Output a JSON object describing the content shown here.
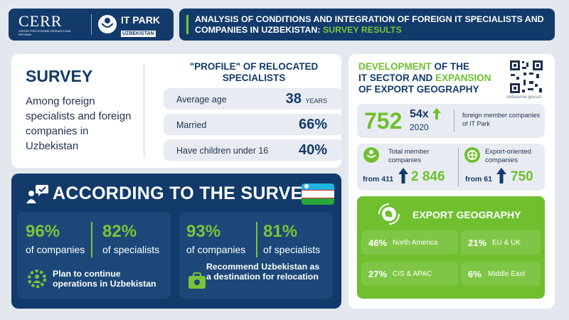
{
  "header": {
    "cerr_logo": "CERR",
    "cerr_sub": "CENTER FOR ECONOMIC RESEARCH AND REFORMS",
    "itpark_logo": "IT PARK",
    "itpark_sub": "UZBEKISTAN",
    "title_part1": "ANALYSIS OF CONDITIONS AND INTEGRATION OF FOREIGN IT SPECIALISTS AND COMPANIES IN UZBEKISTAN:",
    "title_highlight": "SURVEY RESULTS"
  },
  "survey": {
    "heading": "SURVEY",
    "description": "Among foreign specialists and foreign companies in Uzbekistan",
    "profile_title": "\"PROFILE\" OF RELOCATED SPECIALISTS",
    "rows": [
      {
        "label": "Average age",
        "value": "38",
        "unit": "YEARS"
      },
      {
        "label": "Married",
        "value": "66%",
        "unit": ""
      },
      {
        "label": "Have children under 16",
        "value": "40%",
        "unit": ""
      }
    ]
  },
  "according": {
    "heading": "ACCORDING TO THE SURVEY",
    "cards": [
      {
        "pct1": "96%",
        "label1": "of companies",
        "pct2": "82%",
        "label2": "of specialists",
        "desc": "Plan to continue operations in Uzbekistan"
      },
      {
        "pct1": "93%",
        "label1": "of companies",
        "pct2": "81%",
        "label2": "of specialists",
        "desc": "Recommend Uzbekistan as a destination for relocation"
      }
    ]
  },
  "development": {
    "title_a": "DEVELOPMENT",
    "title_b": " OF THE",
    "title_c": "IT SECTOR AND ",
    "title_d": "EXPANSION",
    "title_e": "OF EXPORT GEOGRAPHY",
    "qr_url": "outsource.gov.uz",
    "members_value": "752",
    "growth_value": "54x",
    "growth_year": "2020",
    "members_label": "foreign member companies of IT Park",
    "total": {
      "label": "Total member companies",
      "from": "from 411",
      "to": "2 846"
    },
    "export": {
      "label": "Export-oriented companies",
      "from": "from 61",
      "to": "750"
    }
  },
  "export_geo": {
    "heading": "EXPORT GEOGRAPHY",
    "regions": [
      {
        "pct": "46%",
        "region": "North America"
      },
      {
        "pct": "21%",
        "region": "EU & UK"
      },
      {
        "pct": "27%",
        "region": "CIS & APAC"
      },
      {
        "pct": "6%",
        "region": "Middle East"
      }
    ]
  },
  "colors": {
    "navy": "#123a6b",
    "green": "#6fbf2f",
    "light": "#e8ecf2"
  }
}
